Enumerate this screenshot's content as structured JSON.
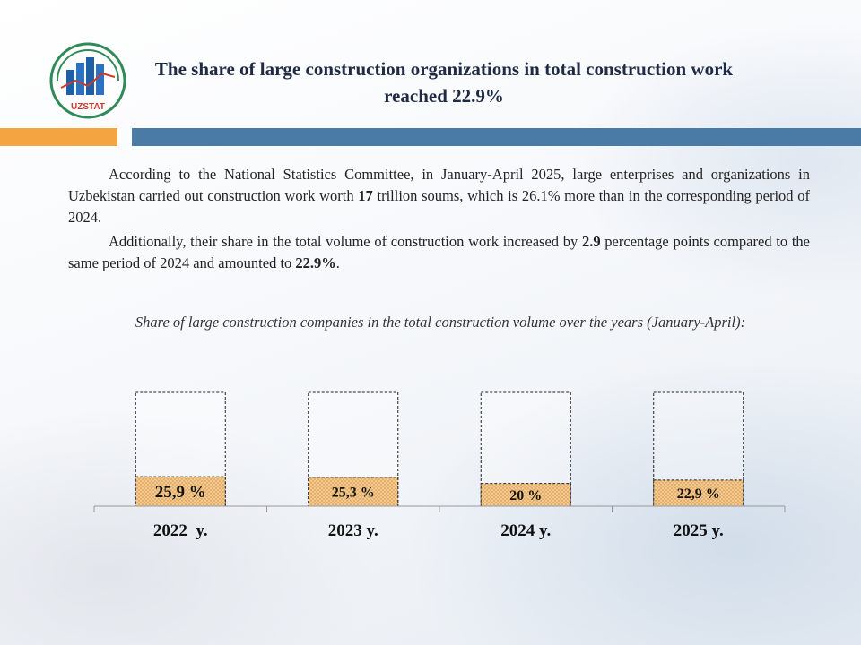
{
  "logo": {
    "text": "UZSTAT",
    "icon": "uzstat-logo-icon"
  },
  "title": "The share of large construction organizations in total construction work reached 22.9%",
  "paragraph1": {
    "before": "According to the National Statistics Committee, in January-April 2025, large enterprises and organizations in Uzbekistan carried out construction work worth ",
    "bold": "17",
    "after": " trillion soums, which is 26.1% more than in the corresponding  period of 2024."
  },
  "paragraph2": {
    "before": "Additionally, their share in the total volume of construction work increased by ",
    "bold1": "2.9",
    "middle": " percentage  points compared to the same period of 2024 and amounted to ",
    "bold2": "22.9%",
    "after": "."
  },
  "caption": "Share of large construction companies in the total construction volume over the years (January-April):",
  "colors": {
    "orange": "#f4a441",
    "blue": "#4a7ba7",
    "bar_fill": "#f3c98f"
  },
  "chart_data": {
    "type": "bar",
    "title": "Share of large construction companies in the total construction volume over the years (January-April):",
    "categories": [
      "2022  y.",
      "2023 y.",
      "2024 y.",
      "2025 y."
    ],
    "values": [
      25.9,
      25.3,
      20,
      22.9
    ],
    "data_labels": [
      "25,9 %",
      "25,3 %",
      "20 %",
      "22,9 %"
    ],
    "ylim": [
      0,
      100
    ],
    "grid": false,
    "legend": "none"
  }
}
